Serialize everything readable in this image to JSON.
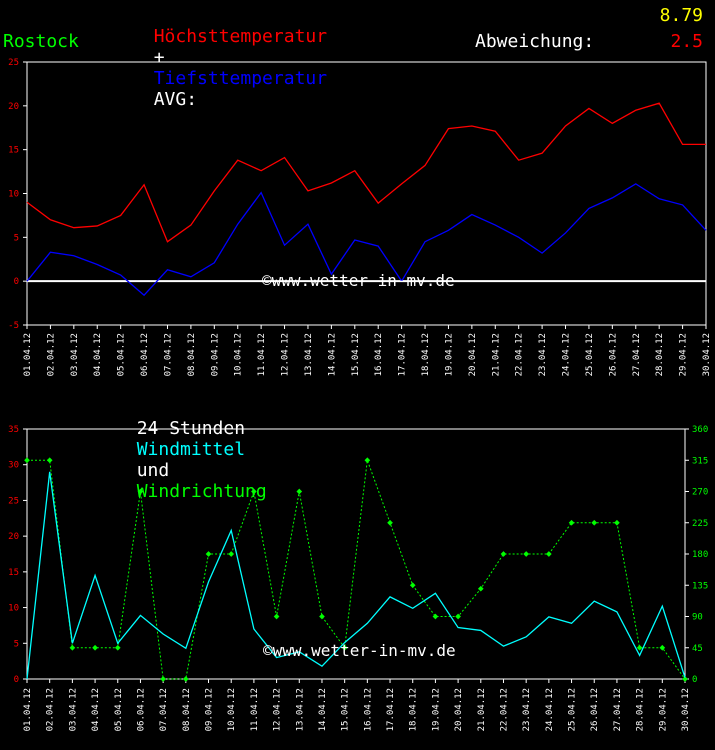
{
  "header": {
    "title_high": "Höchsttemperatur",
    "title_plus": "+",
    "title_low": "Tiefsttemperatur",
    "avg_label": "AVG:",
    "avg_value": "8.79",
    "location": "Rostock",
    "deviation_label": "Abweichung:",
    "deviation_value": "2.5",
    "wind_title_prefix": "24 Stunden",
    "wind_title_mean": "Windmittel",
    "wind_title_and": "und",
    "wind_title_dir": "Windrichtung"
  },
  "watermark": "©www.wetter-in-mv.de",
  "colors": {
    "high": "#ff0000",
    "low": "#0000ff",
    "avg": "#ffff00",
    "location": "#00ff00",
    "wind_mean": "#00ffff",
    "wind_dir": "#00ff00",
    "axis_labels": "#ff0000",
    "dir_axis_labels": "#00ff00",
    "grid": "#ffffff"
  },
  "chart_data": [
    {
      "type": "line",
      "x": [
        "01.04.12",
        "02.04.12",
        "03.04.12",
        "04.04.12",
        "05.04.12",
        "06.04.12",
        "07.04.12",
        "08.04.12",
        "09.04.12",
        "10.04.12",
        "11.04.12",
        "12.04.12",
        "13.04.12",
        "14.04.12",
        "15.04.12",
        "16.04.12",
        "17.04.12",
        "18.04.12",
        "19.04.12",
        "20.04.12",
        "21.04.12",
        "22.04.12",
        "23.04.12",
        "24.04.12",
        "25.04.12",
        "26.04.12",
        "27.04.12",
        "28.04.12",
        "29.04.12",
        "30.04.12"
      ],
      "series": [
        {
          "name": "Höchsttemperatur",
          "values": [
            9.0,
            7.0,
            6.1,
            6.3,
            7.5,
            11.0,
            4.5,
            6.4,
            10.3,
            13.8,
            12.6,
            14.1,
            10.3,
            11.2,
            12.6,
            8.9,
            11.1,
            13.2,
            17.4,
            17.7,
            17.1,
            13.8,
            14.6,
            17.7,
            19.7,
            18.0,
            19.5,
            20.3,
            15.6,
            15.6
          ]
        },
        {
          "name": "Tiefsttemperatur",
          "values": [
            0.0,
            3.3,
            2.9,
            1.9,
            0.7,
            -1.6,
            1.3,
            0.5,
            2.1,
            6.5,
            10.1,
            4.1,
            6.5,
            0.8,
            4.7,
            4.0,
            0.0,
            4.5,
            5.8,
            7.6,
            6.4,
            5.0,
            3.2,
            5.5,
            8.3,
            9.5,
            11.1,
            9.4,
            8.7,
            5.8
          ]
        }
      ],
      "ylim": [
        -5,
        25
      ],
      "yticks": [
        -5,
        0,
        5,
        10,
        15,
        20,
        25
      ],
      "grid": false,
      "zero_line": true
    },
    {
      "type": "line",
      "x": [
        "01.04.12",
        "02.04.12",
        "03.04.12",
        "04.04.12",
        "05.04.12",
        "06.04.12",
        "07.04.12",
        "08.04.12",
        "09.04.12",
        "10.04.12",
        "11.04.12",
        "12.04.12",
        "13.04.12",
        "14.04.12",
        "15.04.12",
        "16.04.12",
        "17.04.12",
        "18.04.12",
        "19.04.12",
        "20.04.12",
        "21.04.12",
        "22.04.12",
        "23.04.12",
        "24.04.12",
        "25.04.12",
        "26.04.12",
        "27.04.12",
        "28.04.12",
        "29.04.12",
        "30.04.12"
      ],
      "series": [
        {
          "name": "Windmittel",
          "axis": "left",
          "values": [
            0.0,
            29.0,
            5.0,
            14.5,
            5.0,
            8.9,
            6.3,
            4.3,
            13.6,
            20.8,
            7.0,
            3.0,
            3.8,
            1.8,
            5.1,
            7.8,
            11.5,
            9.9,
            12.0,
            7.2,
            6.8,
            4.6,
            5.9,
            8.7,
            7.8,
            10.9,
            9.4,
            3.3,
            10.2,
            0.2
          ]
        },
        {
          "name": "Windrichtung",
          "axis": "right",
          "values": [
            315,
            315,
            45,
            45,
            45,
            270,
            0,
            0,
            180,
            180,
            270,
            90,
            270,
            90,
            45,
            315,
            225,
            135,
            90,
            90,
            130,
            180,
            180,
            180,
            225,
            225,
            225,
            45,
            45,
            0
          ]
        }
      ],
      "ylim": [
        0,
        35
      ],
      "yticks": [
        0,
        5,
        10,
        15,
        20,
        25,
        30,
        35
      ],
      "y2lim": [
        0,
        360
      ],
      "y2ticks": [
        0,
        45,
        90,
        135,
        180,
        225,
        270,
        315,
        360
      ],
      "grid": false
    }
  ]
}
